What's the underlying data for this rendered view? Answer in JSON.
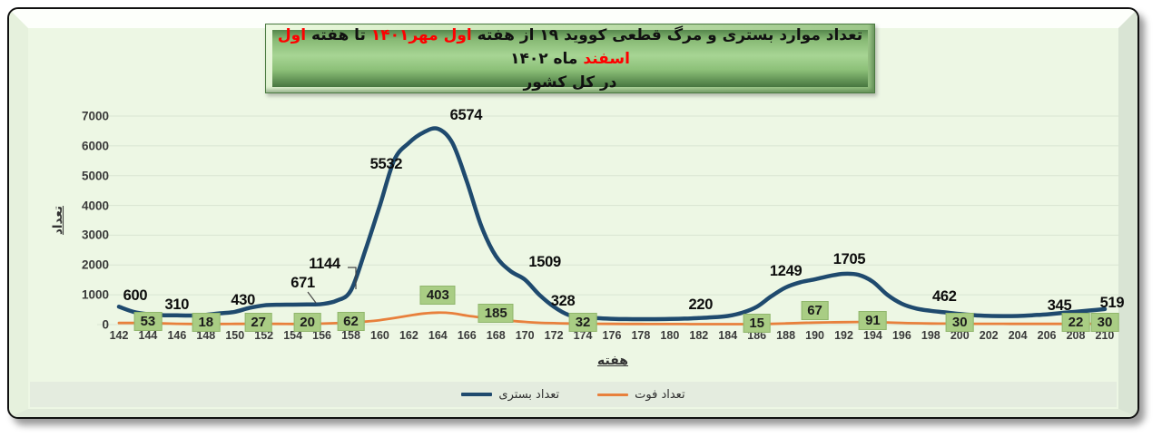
{
  "title": {
    "line1_segments": [
      {
        "text": "تعداد موارد بستری و مرگ قطعی کووید ۱۹ از هفته ",
        "color": "#111111"
      },
      {
        "text": "اول مهر۱۴۰۱",
        "color": "#ff0000"
      },
      {
        "text": " تا هفته ",
        "color": "#111111"
      },
      {
        "text": "اول اسفند",
        "color": "#ff0000"
      },
      {
        "text": " ماه ۱۴۰۲",
        "color": "#111111"
      }
    ],
    "line2": "در کل کشور"
  },
  "colors": {
    "hospitalized_line": "#1f4a6e",
    "death_line": "#e8803c",
    "label_box_fill": "#a9cd84",
    "plot_background": "#edf7e4",
    "legend_strip": "#e4ecdf",
    "gridline": "#d9e5d2",
    "title_red": "#ff0000"
  },
  "legend": {
    "items": [
      {
        "name": "hospitalized",
        "label": "تعداد بستری",
        "color": "#1f4a6e"
      },
      {
        "name": "deaths",
        "label": "تعداد فوت",
        "color": "#e8803c"
      }
    ]
  },
  "chart_data": {
    "type": "line",
    "title": "تعداد موارد بستری و مرگ قطعی کووید ۱۹ از هفته اول مهر۱۴۰۱ تا هفته اول اسفند ماه ۱۴۰۲ در کل کشور",
    "xlabel": "هفته",
    "ylabel": "تعداد",
    "ylim": [
      0,
      7000
    ],
    "yticks": [
      0,
      1000,
      2000,
      3000,
      4000,
      5000,
      6000,
      7000
    ],
    "xticks": [
      142,
      144,
      146,
      148,
      150,
      152,
      154,
      156,
      158,
      160,
      162,
      164,
      166,
      168,
      170,
      172,
      174,
      176,
      178,
      180,
      182,
      184,
      186,
      188,
      190,
      192,
      194,
      196,
      198,
      200,
      202,
      204,
      206,
      208,
      210
    ],
    "grid": "horizontal",
    "legend_position": "bottom",
    "x_weeks_start": 142,
    "x_weeks": [
      142,
      143,
      144,
      145,
      146,
      147,
      148,
      149,
      150,
      151,
      152,
      153,
      154,
      155,
      156,
      157,
      158,
      159,
      160,
      161,
      162,
      163,
      164,
      165,
      166,
      167,
      168,
      169,
      170,
      171,
      172,
      173,
      174,
      175,
      176,
      177,
      178,
      179,
      180,
      181,
      182,
      183,
      184,
      185,
      186,
      187,
      188,
      189,
      190,
      191,
      192,
      193,
      194,
      195,
      196,
      197,
      198,
      199,
      200,
      201,
      202,
      203,
      204,
      205,
      206,
      207,
      208,
      209,
      210
    ],
    "series": [
      {
        "name": "تعداد بستری",
        "color": "#1f4a6e",
        "stroke_width": 4.5,
        "values": [
          600,
          430,
          350,
          315,
          310,
          305,
          330,
          380,
          430,
          560,
          645,
          668,
          671,
          675,
          690,
          800,
          1144,
          2500,
          4000,
          5532,
          6100,
          6450,
          6574,
          6100,
          4800,
          3300,
          2300,
          1800,
          1509,
          1000,
          600,
          328,
          250,
          215,
          195,
          185,
          182,
          183,
          188,
          200,
          220,
          245,
          290,
          400,
          600,
          950,
          1249,
          1420,
          1520,
          1630,
          1705,
          1670,
          1440,
          1000,
          700,
          540,
          462,
          410,
          355,
          315,
          292,
          285,
          290,
          312,
          345,
          390,
          430,
          475,
          519
        ],
        "labeled_points": [
          {
            "week": 142,
            "value": 600,
            "dx": 18,
            "dy": -21
          },
          {
            "week": 146,
            "value": 310,
            "dx": 0,
            "dy": -21
          },
          {
            "week": 150,
            "value": 430,
            "dx": 9,
            "dy": -22
          },
          {
            "week": 154,
            "value": 671,
            "dx": 11,
            "dy": -33,
            "callout": "short"
          },
          {
            "week": 158,
            "value": 1144,
            "dx": -29,
            "dy": -38,
            "callout": "bent"
          },
          {
            "week": 161,
            "value": 5532,
            "dx": -9,
            "dy": -4
          },
          {
            "week": 164,
            "value": 6574,
            "dx": 31,
            "dy": -24
          },
          {
            "week": 170,
            "value": 1509,
            "dx": 22,
            "dy": -28
          },
          {
            "week": 173,
            "value": 328,
            "dx": -6,
            "dy": -24
          },
          {
            "week": 182,
            "value": 220,
            "dx": 2,
            "dy": -24
          },
          {
            "week": 188,
            "value": 1249,
            "dx": 0,
            "dy": -27
          },
          {
            "week": 192,
            "value": 1705,
            "dx": 6,
            "dy": -25
          },
          {
            "week": 198,
            "value": 462,
            "dx": 15,
            "dy": -25
          },
          {
            "week": 206,
            "value": 345,
            "dx": 14,
            "dy": -19
          },
          {
            "week": 210,
            "value": 519,
            "dx": 8,
            "dy": -16
          }
        ]
      },
      {
        "name": "تعداد فوت",
        "color": "#e8803c",
        "stroke_width": 2.8,
        "values": [
          55,
          54,
          53,
          40,
          28,
          22,
          18,
          20,
          24,
          26,
          27,
          24,
          20,
          20,
          35,
          48,
          62,
          100,
          150,
          220,
          300,
          370,
          403,
          380,
          300,
          240,
          185,
          130,
          90,
          62,
          48,
          38,
          32,
          28,
          25,
          22,
          20,
          19,
          18,
          17,
          16,
          15,
          15,
          15,
          15,
          25,
          40,
          55,
          67,
          76,
          83,
          88,
          91,
          74,
          58,
          45,
          38,
          33,
          30,
          28,
          27,
          26,
          25,
          24,
          24,
          23,
          22,
          26,
          30
        ],
        "labeled_points": [
          {
            "week": 144,
            "value": 53,
            "dx": 0,
            "dy": 0
          },
          {
            "week": 148,
            "value": 18,
            "dx": 0,
            "dy": 0
          },
          {
            "week": 152,
            "value": 27,
            "dx": -6,
            "dy": 0
          },
          {
            "week": 155,
            "value": 20,
            "dx": 0,
            "dy": 0
          },
          {
            "week": 158,
            "value": 62,
            "dx": 0,
            "dy": 0
          },
          {
            "week": 164,
            "value": 403,
            "dx": 0,
            "dy": -18
          },
          {
            "week": 168,
            "value": 185,
            "dx": 0,
            "dy": -5
          },
          {
            "week": 174,
            "value": 32,
            "dx": 0,
            "dy": 0
          },
          {
            "week": 186,
            "value": 15,
            "dx": 0,
            "dy": 0
          },
          {
            "week": 190,
            "value": 67,
            "dx": 0,
            "dy": -12
          },
          {
            "week": 194,
            "value": 91,
            "dx": 0,
            "dy": 0
          },
          {
            "week": 200,
            "value": 30,
            "dx": 0,
            "dy": 0
          },
          {
            "week": 208,
            "value": 22,
            "dx": 0,
            "dy": 0
          },
          {
            "week": 210,
            "value": 30,
            "dx": 0,
            "dy": 0
          }
        ]
      }
    ]
  }
}
